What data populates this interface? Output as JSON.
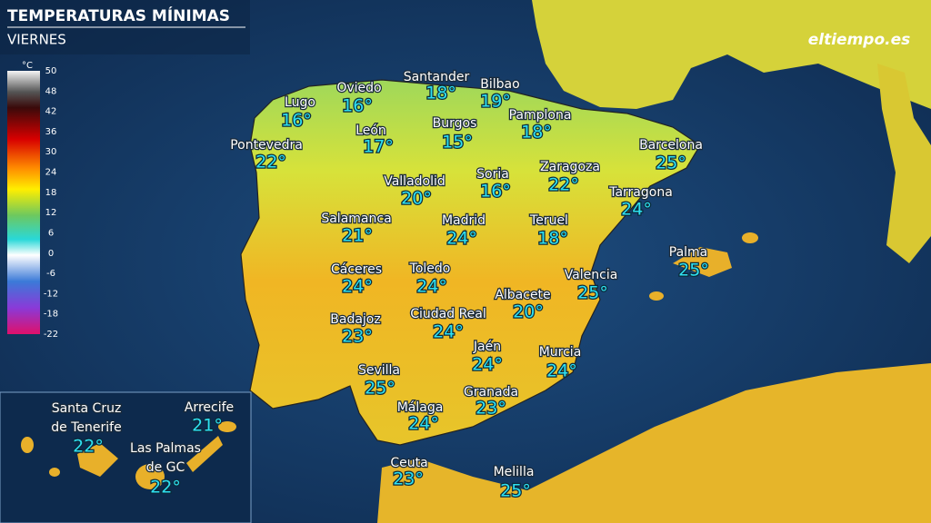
{
  "header": {
    "title": "TEMPERATURAS MÍNIMAS",
    "subtitle": "VIERNES"
  },
  "logo": "eltiempo.es",
  "legend": {
    "unit": "°C",
    "ticks": [
      50,
      48,
      42,
      36,
      30,
      24,
      18,
      12,
      6,
      0,
      -6,
      -12,
      -18,
      -22
    ]
  },
  "cities": [
    {
      "name": [
        "Lugo"
      ],
      "temp": "16°"
    },
    {
      "name": [
        "Oviedo"
      ],
      "temp": "16°"
    },
    {
      "name": [
        "Santander"
      ],
      "temp": "18°"
    },
    {
      "name": [
        "Bilbao"
      ],
      "temp": "19°"
    },
    {
      "name": [
        "Pamplona"
      ],
      "temp": "18°"
    },
    {
      "name": [
        "León"
      ],
      "temp": "17°"
    },
    {
      "name": [
        "Burgos"
      ],
      "temp": "15°"
    },
    {
      "name": [
        "Pontevedra"
      ],
      "temp": "22°"
    },
    {
      "name": [
        "Barcelona"
      ],
      "temp": "25°"
    },
    {
      "name": [
        "Valladolid"
      ],
      "temp": "20°"
    },
    {
      "name": [
        "Soria"
      ],
      "temp": "16°"
    },
    {
      "name": [
        "Zaragoza"
      ],
      "temp": "22°"
    },
    {
      "name": [
        "Tarragona"
      ],
      "temp": "24°"
    },
    {
      "name": [
        "Salamanca"
      ],
      "temp": "21°"
    },
    {
      "name": [
        "Madrid"
      ],
      "temp": "24°"
    },
    {
      "name": [
        "Teruel"
      ],
      "temp": "18°"
    },
    {
      "name": [
        "Palma"
      ],
      "temp": "25°"
    },
    {
      "name": [
        "Cáceres"
      ],
      "temp": "24°"
    },
    {
      "name": [
        "Toledo"
      ],
      "temp": "24°"
    },
    {
      "name": [
        "Valencia"
      ],
      "temp": "25°"
    },
    {
      "name": [
        "Albacete"
      ],
      "temp": "20°"
    },
    {
      "name": [
        "Badajoz"
      ],
      "temp": "23°"
    },
    {
      "name": [
        "Ciudad Real"
      ],
      "temp": "24°"
    },
    {
      "name": [
        "Jaén"
      ],
      "temp": "24°"
    },
    {
      "name": [
        "Murcia"
      ],
      "temp": "24°"
    },
    {
      "name": [
        "Sevilla"
      ],
      "temp": "25°"
    },
    {
      "name": [
        "Granada"
      ],
      "temp": "23°"
    },
    {
      "name": [
        "Málaga"
      ],
      "temp": "24°"
    },
    {
      "name": [
        "Ceuta"
      ],
      "temp": "23°"
    },
    {
      "name": [
        "Melilla"
      ],
      "temp": "25°"
    },
    {
      "name": [
        "Santa Cruz",
        "de Tenerife"
      ],
      "temp": "22°"
    },
    {
      "name": [
        "Arrecife"
      ],
      "temp": "21°"
    },
    {
      "name": [
        "Las Palmas",
        "de GC"
      ],
      "temp": "22°"
    }
  ]
}
